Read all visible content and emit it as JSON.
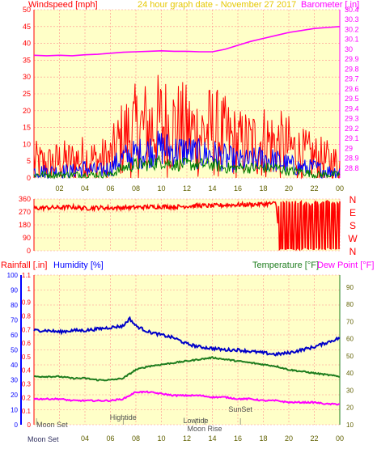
{
  "header": {
    "left_label": "Windspeed [mph]",
    "center_label": "24 hour graph date - November 27 2017",
    "right_label": "Barometer [.in]"
  },
  "colors": {
    "background": "#ffffff",
    "plot_bg": "#ffffc8",
    "grid": "#ff8c8c",
    "axis_red": "#ff0000",
    "header_gold": "#e6c800",
    "barometer": "#ff00ff",
    "gust": "#ff0000",
    "wind_avg": "#0000ff",
    "wind_low": "#008000",
    "humidity": "#0000c8",
    "temperature": "#1e7d1e",
    "dewpoint": "#ff00ff",
    "rain_axis": "#0000ff",
    "ticks_dark": "#606000"
  },
  "chart_data": [
    {
      "type": "line",
      "xlabel": "",
      "ylabel": "Windspeed [mph]",
      "y2label": "Barometer [.in]",
      "x_ticks": [
        "02",
        "04",
        "06",
        "08",
        "10",
        "12",
        "14",
        "16",
        "18",
        "20",
        "22",
        "00"
      ],
      "xlim": [
        0,
        24
      ],
      "ylim": [
        0,
        50
      ],
      "y_ticks": [
        0,
        5,
        10,
        15,
        20,
        25,
        30,
        35,
        40,
        45,
        50
      ],
      "y2lim": [
        28.7,
        30.4
      ],
      "y2_ticks": [
        "28.8",
        "28.9",
        "29",
        "29.1",
        "29.2",
        "29.3",
        "29.4",
        "29.5",
        "29.6",
        "29.7",
        "29.8",
        "29.9",
        "30",
        "30.1",
        "30.2",
        "30.3",
        "30.4"
      ],
      "series": [
        {
          "name": "Barometer",
          "axis": "right",
          "x": [
            0,
            1,
            2,
            3,
            4,
            5,
            6,
            7,
            8,
            9,
            10,
            11,
            12,
            13,
            14,
            15,
            16,
            17,
            18,
            19,
            20,
            21,
            22,
            23,
            24
          ],
          "y": [
            29.94,
            29.935,
            29.94,
            29.935,
            29.945,
            29.95,
            29.96,
            29.97,
            29.975,
            29.98,
            29.985,
            29.98,
            29.98,
            29.975,
            29.975,
            30.0,
            30.04,
            30.08,
            30.11,
            30.14,
            30.17,
            30.19,
            30.21,
            30.22,
            30.23
          ]
        },
        {
          "name": "Gust",
          "axis": "left",
          "x": [
            0,
            1,
            2,
            3,
            4,
            5,
            6,
            7,
            8,
            9,
            10,
            11,
            12,
            13,
            14,
            15,
            16,
            17,
            18,
            19,
            20,
            21,
            22,
            23,
            24
          ],
          "y": [
            5,
            4,
            5,
            5,
            6,
            5,
            6,
            12,
            14,
            15,
            16,
            15,
            14,
            13,
            14,
            12,
            10,
            10,
            11,
            10,
            9,
            7,
            6,
            5,
            4
          ]
        },
        {
          "name": "Average",
          "axis": "left",
          "x": [
            0,
            1,
            2,
            3,
            4,
            5,
            6,
            7,
            8,
            9,
            10,
            11,
            12,
            13,
            14,
            15,
            16,
            17,
            18,
            19,
            20,
            21,
            22,
            23,
            24
          ],
          "y": [
            2,
            2,
            2,
            2,
            3,
            2,
            3,
            6,
            7,
            8,
            9,
            8,
            8,
            7,
            7,
            6,
            5,
            5,
            6,
            5,
            4,
            3,
            3,
            2,
            2
          ]
        },
        {
          "name": "Low",
          "axis": "left",
          "x": [
            0,
            1,
            2,
            3,
            4,
            5,
            6,
            7,
            8,
            9,
            10,
            11,
            12,
            13,
            14,
            15,
            16,
            17,
            18,
            19,
            20,
            21,
            22,
            23,
            24
          ],
          "y": [
            1,
            1,
            1,
            1,
            1,
            1,
            1,
            3,
            4,
            4,
            5,
            4,
            4,
            4,
            4,
            3,
            3,
            3,
            3,
            3,
            2,
            2,
            1,
            1,
            1
          ]
        }
      ]
    },
    {
      "type": "line",
      "ylabel": "Wind direction",
      "ylim": [
        0,
        360
      ],
      "y_ticks": [
        0,
        90,
        180,
        270,
        360
      ],
      "right_labels": [
        "N",
        "W",
        "S",
        "E",
        "N"
      ],
      "series": [
        {
          "name": "Direction",
          "x": [
            0,
            1,
            2,
            3,
            4,
            5,
            6,
            7,
            8,
            9,
            10,
            11,
            12,
            13,
            14,
            15,
            16,
            17,
            18,
            19,
            19.3,
            19.6,
            20,
            20.5,
            21,
            21.5,
            22,
            22.5,
            23,
            23.5,
            24
          ],
          "y": [
            295,
            300,
            300,
            305,
            295,
            300,
            298,
            300,
            302,
            305,
            308,
            305,
            310,
            315,
            312,
            318,
            320,
            322,
            325,
            330,
            10,
            335,
            20,
            340,
            15,
            345,
            5,
            350,
            10,
            340,
            10
          ]
        }
      ]
    },
    {
      "type": "line",
      "y_left_label": "Rainfall [.in]",
      "y_left2_label": "Humidity [%]",
      "y_right_label1": "Temperature [°F]",
      "y_right_label2": "Dew Point [°F]",
      "x_ticks": [
        "02",
        "04",
        "06",
        "08",
        "10",
        "12",
        "14",
        "16",
        "18",
        "20",
        "22",
        "00"
      ],
      "xlim": [
        0,
        24
      ],
      "rain_ylim": [
        0,
        1.1
      ],
      "rain_ticks": [
        "0",
        "0.1",
        "0.2",
        "0.3",
        "0.4",
        "0.5",
        "0.6",
        "0.7",
        "0.8",
        "0.9",
        "1",
        "1.1"
      ],
      "humidity_ylim": [
        0,
        100
      ],
      "humidity_ticks": [
        0,
        10,
        20,
        30,
        40,
        50,
        60,
        70,
        80,
        90,
        100
      ],
      "temp_ylim": [
        10,
        97
      ],
      "temp_ticks": [
        10,
        20,
        30,
        40,
        50,
        60,
        70,
        80,
        90
      ],
      "series": [
        {
          "name": "Humidity",
          "axis": "humidity",
          "x": [
            0,
            1,
            2,
            3,
            4,
            5,
            6,
            7,
            7.5,
            8,
            9,
            10,
            11,
            12,
            13,
            14,
            15,
            16,
            17,
            18,
            19,
            20,
            21,
            22,
            23,
            24
          ],
          "y": [
            63,
            63,
            62,
            63,
            63,
            64,
            65,
            66,
            71,
            66,
            62,
            60,
            58,
            54,
            52,
            51,
            50,
            50,
            49,
            48,
            47,
            48,
            50,
            52,
            55,
            58
          ]
        },
        {
          "name": "Temperature",
          "axis": "temp",
          "x": [
            0,
            1,
            2,
            3,
            4,
            5,
            6,
            7,
            8,
            9,
            10,
            11,
            12,
            13,
            14,
            15,
            16,
            17,
            18,
            19,
            20,
            21,
            22,
            23,
            24
          ],
          "y": [
            38,
            38,
            38,
            37,
            37,
            36,
            36,
            37,
            42,
            44,
            45,
            46,
            47,
            48,
            49,
            48,
            47,
            46,
            45,
            44,
            42,
            41,
            40,
            39,
            38
          ]
        },
        {
          "name": "Dew Point",
          "axis": "temp",
          "x": [
            0,
            1,
            2,
            3,
            4,
            5,
            6,
            7,
            8,
            9,
            10,
            11,
            12,
            13,
            14,
            15,
            16,
            17,
            18,
            19,
            20,
            21,
            22,
            23,
            24
          ],
          "y": [
            25,
            25,
            25,
            24,
            24,
            24,
            24,
            25,
            29,
            29,
            28,
            27,
            27,
            27,
            26,
            26,
            25,
            25,
            24,
            24,
            23,
            23,
            23,
            22,
            22
          ]
        }
      ],
      "annotations": [
        {
          "text": "Moon Set",
          "x": 0.2
        },
        {
          "text": "Hightide",
          "x": 7.0
        },
        {
          "text": "Lowtide",
          "x": 12.7
        },
        {
          "text": "Moon Rise",
          "x": 13.4
        },
        {
          "text": "SunSet",
          "x": 16.2
        }
      ],
      "bottom_left_label": "Moon Set"
    }
  ]
}
